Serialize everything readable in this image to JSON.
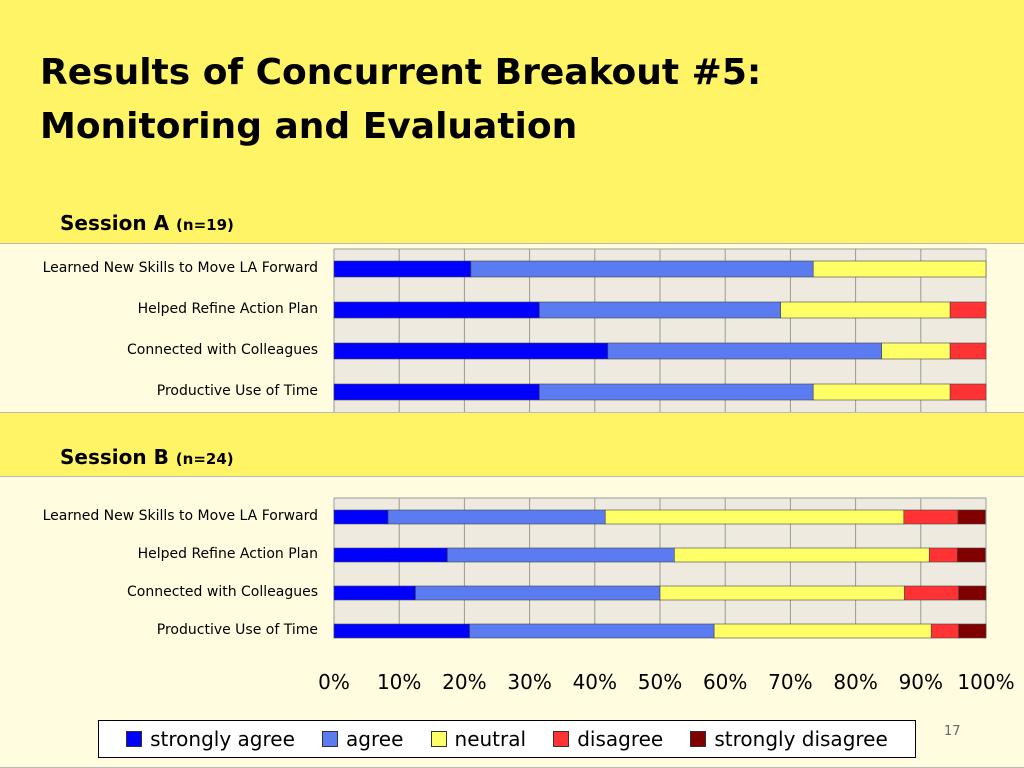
{
  "title_line1": "Results of Concurrent Breakout #5:",
  "title_line2": "Monitoring and Evaluation",
  "session_a": {
    "label": "Session A",
    "n": "(n=19)"
  },
  "session_b": {
    "label": "Session B",
    "n": "(n=24)"
  },
  "page_number": "17",
  "colors": {
    "strongly_agree": "#0000FF",
    "agree": "#5B7BF0",
    "neutral": "#FFFF66",
    "disagree": "#FF3333",
    "strongly_disagree": "#800000",
    "plot_bg": "#EEEADF",
    "panel_bg": "#FFFCE0",
    "slide_bg": "#FFF466"
  },
  "legend": [
    "strongly agree",
    "agree",
    "neutral",
    "disagree",
    "strongly disagree"
  ],
  "chart_data": [
    {
      "type": "bar",
      "orientation": "horizontal",
      "stacked": "100%",
      "title": "Session A (n=19)",
      "categories": [
        "Learned New Skills to Move LA Forward",
        "Helped Refine Action Plan",
        "Connected with Colleagues",
        "Productive Use of Time"
      ],
      "series": [
        {
          "name": "strongly agree",
          "values": [
            21,
            31.5,
            42,
            31.5
          ]
        },
        {
          "name": "agree",
          "values": [
            52.5,
            37,
            42,
            42
          ]
        },
        {
          "name": "neutral",
          "values": [
            26.5,
            26,
            10.5,
            21
          ]
        },
        {
          "name": "disagree",
          "values": [
            0,
            5.5,
            5.5,
            5.5
          ]
        },
        {
          "name": "strongly disagree",
          "values": [
            0,
            0,
            0,
            0
          ]
        }
      ],
      "xlim": [
        0,
        100
      ],
      "xticks": [
        "0%",
        "10%",
        "20%",
        "30%",
        "40%",
        "50%",
        "60%",
        "70%",
        "80%",
        "90%",
        "100%"
      ],
      "grid": true
    },
    {
      "type": "bar",
      "orientation": "horizontal",
      "stacked": "100%",
      "title": "Session B (n=24)",
      "categories": [
        "Learned New Skills to Move LA Forward",
        "Helped Refine Action Plan",
        "Connected with Colleagues",
        "Productive Use of Time"
      ],
      "series": [
        {
          "name": "strongly agree",
          "values": [
            8.3,
            17.4,
            12.5,
            20.8
          ]
        },
        {
          "name": "agree",
          "values": [
            33.3,
            34.8,
            37.5,
            37.5
          ]
        },
        {
          "name": "neutral",
          "values": [
            45.8,
            39.1,
            37.5,
            33.3
          ]
        },
        {
          "name": "disagree",
          "values": [
            8.3,
            4.3,
            8.3,
            4.2
          ]
        },
        {
          "name": "strongly disagree",
          "values": [
            4.2,
            4.3,
            4.2,
            4.2
          ]
        }
      ],
      "xlim": [
        0,
        100
      ],
      "xticks": [
        "0%",
        "10%",
        "20%",
        "30%",
        "40%",
        "50%",
        "60%",
        "70%",
        "80%",
        "90%",
        "100%"
      ],
      "grid": true,
      "legend_position": "bottom"
    }
  ]
}
